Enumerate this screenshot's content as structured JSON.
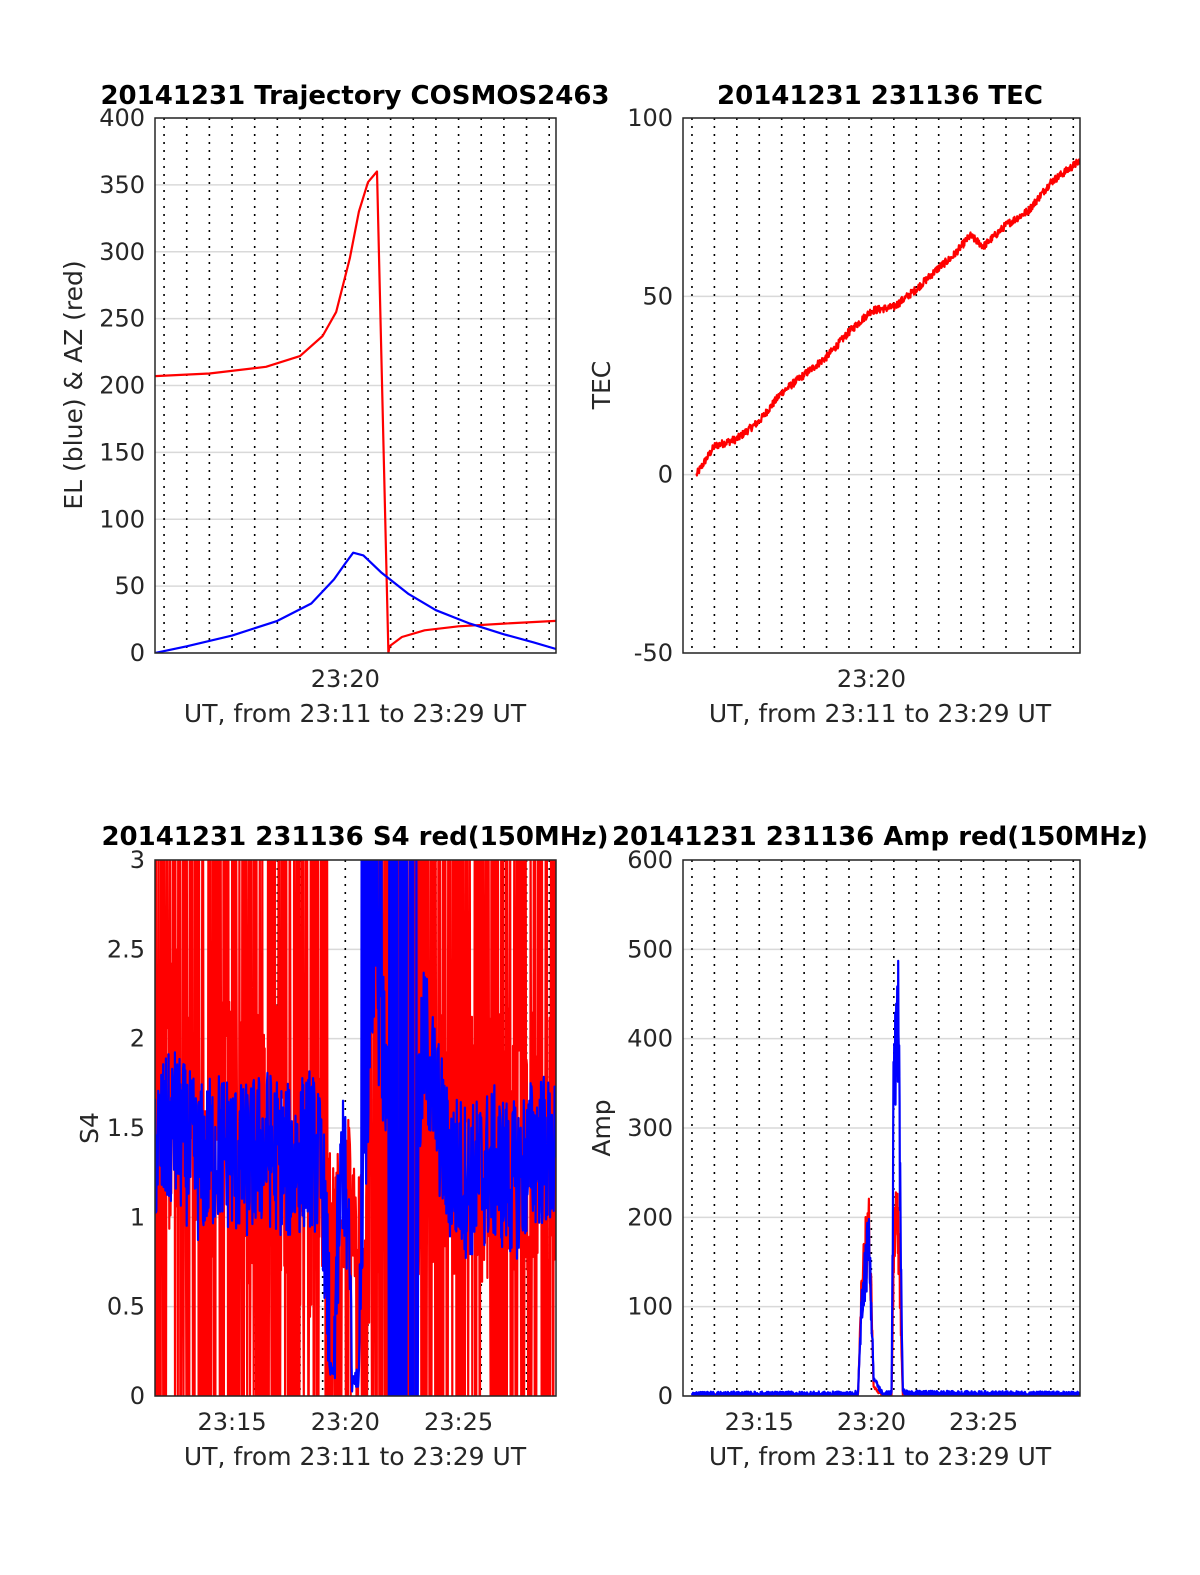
{
  "colors": {
    "az": "#ff0000",
    "el": "#0000ff",
    "tec": "#ff0000",
    "s4_red": "#ff0000",
    "s4_blue": "#0000ff",
    "amp_red": "#ff0000",
    "amp_blue": "#0000ff",
    "grid": "#d9d9d9",
    "axis": "#262626"
  },
  "chart_data": [
    {
      "id": "trajectory",
      "type": "line",
      "title": "20141231 Trajectory COSMOS2463",
      "xlabel": "UT, from 23:11 to 23:29 UT",
      "ylabel": "EL (blue) & AZ (red)",
      "xlim_minutes": [
        0.6,
        18.3
      ],
      "ylim": [
        0,
        400
      ],
      "yticks": [
        "0",
        "50",
        "100",
        "150",
        "200",
        "250",
        "300",
        "350",
        "400"
      ],
      "xticks": [
        {
          "t": 9.0,
          "label": "23:20"
        }
      ],
      "grid": "vertical dotted every 1 min, horizontal solid at y ticks",
      "series": [
        {
          "color": "red",
          "x_minutes": [
            0.6,
            3.0,
            5.5,
            7.0,
            8.0,
            8.6,
            9.2,
            9.6,
            10.0,
            10.4,
            10.9,
            10.95,
            11.5,
            12.5,
            14.0,
            16.0,
            18.3
          ],
          "values": [
            207,
            209,
            214,
            222,
            237,
            255,
            295,
            330,
            352,
            360,
            0,
            5,
            12,
            17,
            20,
            22,
            24
          ]
        },
        {
          "color": "blue",
          "x_minutes": [
            0.6,
            2.0,
            4.0,
            6.0,
            7.5,
            8.5,
            9.0,
            9.35,
            9.8,
            10.6,
            11.8,
            13.0,
            14.5,
            16.0,
            17.3,
            18.3
          ],
          "values": [
            0,
            5,
            13,
            24,
            37,
            55,
            67,
            75,
            73,
            60,
            44,
            32,
            22,
            14,
            8,
            3
          ]
        }
      ]
    },
    {
      "id": "tec",
      "type": "line",
      "title": "20141231 231136 TEC",
      "xlabel": "UT, from 23:11 to 23:29 UT",
      "ylabel": "TEC",
      "xlim_minutes": [
        0.6,
        18.3
      ],
      "ylim": [
        -50,
        100
      ],
      "yticks": [
        "-50",
        "0",
        "50",
        "100"
      ],
      "xticks": [
        {
          "t": 9.0,
          "label": "23:20"
        }
      ],
      "series": [
        {
          "color": "red",
          "x_minutes": [
            1.2,
            2.0,
            3.0,
            4.0,
            5.0,
            6.0,
            7.0,
            8.0,
            9.0,
            10.0,
            11.0,
            12.0,
            12.6,
            13.4,
            14.0,
            15.0,
            16.0,
            17.0,
            18.3
          ],
          "values": [
            0,
            8,
            10,
            15,
            23,
            28,
            33,
            40,
            46,
            47,
            52,
            58,
            61,
            67,
            64,
            70,
            74,
            82,
            88
          ]
        }
      ]
    },
    {
      "id": "s4",
      "type": "line",
      "title": "20141231 231136 S4 red(150MHz)",
      "xlabel": "UT, from 23:11 to 23:29 UT",
      "ylabel": "S4",
      "xlim_minutes": [
        0.6,
        18.3
      ],
      "ylim": [
        0,
        3
      ],
      "yticks": [
        "0",
        "0.5",
        "1",
        "1.5",
        "2",
        "2.5",
        "3"
      ],
      "xticks": [
        {
          "t": 4.0,
          "label": "23:15"
        },
        {
          "t": 9.0,
          "label": "23:20"
        },
        {
          "t": 14.0,
          "label": "23:25"
        }
      ],
      "series": [
        {
          "color": "red",
          "description_values": "noisy, saturating 0–3",
          "x_minutes": [
            0.6,
            1.5,
            2.5,
            3.5,
            4.5,
            5.5,
            6.5,
            7.5,
            8.0,
            8.5,
            9.2,
            9.8,
            10.5,
            11.5,
            12.5,
            13.5,
            14.5,
            15.5,
            16.5,
            17.5,
            18.3
          ],
          "values": [
            1.3,
            1.8,
            1.2,
            1.6,
            1.4,
            1.5,
            1.3,
            1.2,
            1.1,
            0.9,
            1.2,
            0.8,
            1.5,
            1.8,
            1.2,
            1.4,
            1.6,
            1.3,
            1.5,
            1.4,
            1.3
          ]
        },
        {
          "color": "blue",
          "x_minutes": [
            0.6,
            1.5,
            2.5,
            3.5,
            4.5,
            5.5,
            6.5,
            7.5,
            8.0,
            8.4,
            8.9,
            9.4,
            9.9,
            10.3,
            10.8,
            11.5,
            12.5,
            13.5,
            14.5,
            15.5,
            16.5,
            17.5,
            18.3
          ],
          "values": [
            1.4,
            1.5,
            1.3,
            1.4,
            1.3,
            1.4,
            1.3,
            1.4,
            1.2,
            0.12,
            1.4,
            0.08,
            1.6,
            2.3,
            1.8,
            0.5,
            2.0,
            1.3,
            1.2,
            1.3,
            1.2,
            1.4,
            1.3
          ]
        }
      ]
    },
    {
      "id": "amp",
      "type": "line",
      "title": "20141231 231136 Amp red(150MHz)",
      "xlabel": "UT, from 23:11 to 23:29 UT",
      "ylabel": "Amp",
      "xlim_minutes": [
        0.6,
        18.3
      ],
      "ylim": [
        0,
        600
      ],
      "yticks": [
        "0",
        "100",
        "200",
        "300",
        "400",
        "500",
        "600"
      ],
      "xticks": [
        {
          "t": 4.0,
          "label": "23:15"
        },
        {
          "t": 9.0,
          "label": "23:20"
        },
        {
          "t": 14.0,
          "label": "23:25"
        }
      ],
      "series": [
        {
          "color": "red",
          "x_minutes": [
            0.6,
            8.0,
            8.4,
            8.6,
            8.9,
            9.1,
            9.5,
            9.9,
            10.0,
            10.2,
            10.4,
            10.6,
            18.3
          ],
          "values": [
            0,
            0,
            0,
            140,
            190,
            10,
            0,
            0,
            180,
            190,
            0,
            0,
            0
          ]
        },
        {
          "color": "blue",
          "x_minutes": [
            0.6,
            8.0,
            8.4,
            8.6,
            8.9,
            9.1,
            9.5,
            9.9,
            10.0,
            10.2,
            10.4,
            10.6,
            18.3
          ],
          "values": [
            2,
            2,
            3,
            120,
            175,
            20,
            2,
            3,
            360,
            405,
            5,
            3,
            2
          ]
        }
      ]
    }
  ]
}
